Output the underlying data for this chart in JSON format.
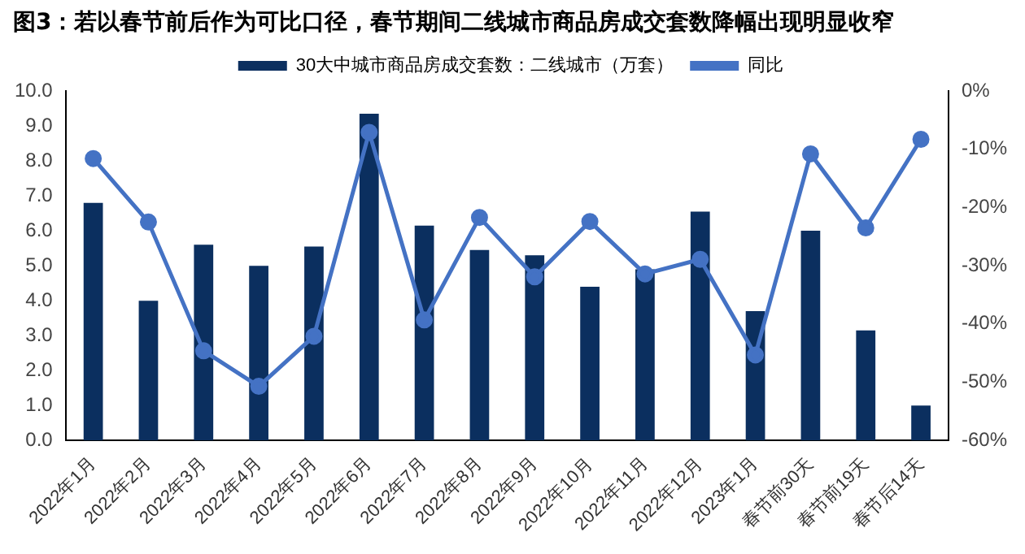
{
  "chart_data": {
    "type": "bar",
    "title": "图3：若以春节前后作为可比口径，春节期间二线城市商品房成交套数降幅出现明显收窄",
    "categories": [
      "2022年1月",
      "2022年2月",
      "2022年3月",
      "2022年4月",
      "2022年5月",
      "2022年6月",
      "2022年7月",
      "2022年8月",
      "2022年9月",
      "2022年10月",
      "2022年11月",
      "2022年12月",
      "2023年1月",
      "春节前30天",
      "春节前19天",
      "春节后14天"
    ],
    "series": [
      {
        "name": "30大中城市商品房成交套数：二线城市（万套）",
        "color": "#0b2f5f",
        "values": [
          6.8,
          4.0,
          5.6,
          5.0,
          5.55,
          9.35,
          6.15,
          5.45,
          5.3,
          4.4,
          4.9,
          6.55,
          3.7,
          6.0,
          3.15,
          1.0
        ]
      },
      {
        "name": "同比",
        "type": "line",
        "axis": "y2",
        "color": "#4472c4",
        "marker": "circle",
        "values": [
          -11.6,
          -22.5,
          -44.6,
          -50.7,
          -42.1,
          -7.1,
          -39.3,
          -21.7,
          -31.9,
          -22.4,
          -31.4,
          -28.9,
          -45.3,
          -10.8,
          -23.5,
          -8.3
        ]
      }
    ],
    "ylim": [
      0,
      10
    ],
    "yticks": [
      {
        "value": 0,
        "label": "0.0"
      },
      {
        "value": 1,
        "label": "1.0"
      },
      {
        "value": 2,
        "label": "2.0"
      },
      {
        "value": 3,
        "label": "3.0"
      },
      {
        "value": 4,
        "label": "4.0"
      },
      {
        "value": 5,
        "label": "5.0"
      },
      {
        "value": 6,
        "label": "6.0"
      },
      {
        "value": 7,
        "label": "7.0"
      },
      {
        "value": 8,
        "label": "8.0"
      },
      {
        "value": 9,
        "label": "9.0"
      },
      {
        "value": 10,
        "label": "10.0"
      }
    ],
    "y2lim": [
      -60,
      0
    ],
    "y2ticks": [
      {
        "value": -60,
        "label": "-60%"
      },
      {
        "value": -50,
        "label": "-50%"
      },
      {
        "value": -40,
        "label": "-40%"
      },
      {
        "value": -30,
        "label": "-30%"
      },
      {
        "value": -20,
        "label": "-20%"
      },
      {
        "value": -10,
        "label": "-10%"
      },
      {
        "value": 0,
        "label": "0%"
      }
    ],
    "legend": "top",
    "grid": false
  }
}
